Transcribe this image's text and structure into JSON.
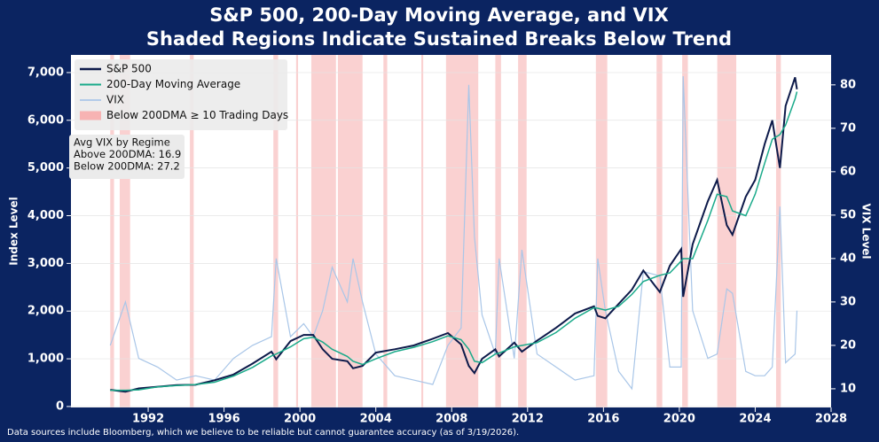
{
  "chart_data": {
    "type": "line",
    "title": "S&P 500, 200-Day Moving Average, and VIX",
    "subtitle": "Shaded Regions Indicate Sustained Breaks Below Trend",
    "ylabel": "Index Level",
    "y2label": "VIX Level",
    "footnote": "Data sources include Bloomberg, which we believe to be reliable but cannot guarantee accuracy (as of 3/19/2026).",
    "annotation": [
      "Avg VIX by Regime",
      "Above 200DMA: 16.9",
      "Below 200DMA: 27.2"
    ],
    "legend": "upper left",
    "grid": true,
    "xlim": [
      1987.93,
      2028
    ],
    "xticks": [
      1992,
      1996,
      2000,
      2004,
      2008,
      2012,
      2016,
      2020,
      2024,
      2028
    ],
    "ylim": [
      -20,
      7370
    ],
    "yticks": [
      0,
      {
        "value": 1000,
        "label": "1,000"
      },
      {
        "value": 2000,
        "label": "2,000"
      },
      {
        "value": 3000,
        "label": "3,000"
      },
      {
        "value": 4000,
        "label": "4,000"
      },
      {
        "value": 5000,
        "label": "5,000"
      },
      {
        "value": 6000,
        "label": "6,000"
      },
      {
        "value": 7000,
        "label": "7,000"
      }
    ],
    "y2lim": [
      5.7,
      86.9
    ],
    "y2ticks": [
      10,
      20,
      30,
      40,
      50,
      60,
      70,
      80
    ],
    "x": [
      1990.0,
      1990.8,
      1991.5,
      1992.5,
      1993.5,
      1994.5,
      1995.5,
      1996.5,
      1997.5,
      1998.5,
      1998.75,
      1999.5,
      2000.2,
      2000.7,
      2001.2,
      2001.7,
      2002.5,
      2002.8,
      2003.3,
      2004.0,
      2005.0,
      2006.0,
      2007.0,
      2007.8,
      2008.5,
      2008.9,
      2009.2,
      2009.6,
      2010.3,
      2010.5,
      2011.3,
      2011.7,
      2012.5,
      2013.5,
      2014.5,
      2015.5,
      2015.7,
      2016.1,
      2016.8,
      2017.5,
      2018.1,
      2018.97,
      2019.5,
      2020.1,
      2020.2,
      2020.7,
      2021.5,
      2021.99,
      2022.5,
      2022.8,
      2023.5,
      2024.0,
      2024.5,
      2024.9,
      2025.3,
      2025.6,
      2026.1,
      2026.2
    ],
    "series": [
      {
        "name": "S&P 500",
        "color": "#0d1a4a",
        "width": 2,
        "values": [
          350,
          310,
          380,
          415,
          450,
          455,
          550,
          670,
          900,
          1150,
          990,
          1370,
          1500,
          1500,
          1200,
          1000,
          950,
          800,
          850,
          1130,
          1200,
          1280,
          1420,
          1540,
          1300,
          850,
          700,
          1000,
          1200,
          1050,
          1340,
          1150,
          1380,
          1650,
          1950,
          2100,
          1900,
          1850,
          2150,
          2450,
          2850,
          2400,
          2950,
          3300,
          2300,
          3400,
          4300,
          4750,
          3800,
          3600,
          4400,
          4750,
          5500,
          6000,
          5000,
          6300,
          6900,
          6650
        ]
      },
      {
        "name": "200-Day Moving Average",
        "color": "#1aaa8a",
        "width": 1.5,
        "values": [
          340,
          340,
          350,
          410,
          440,
          460,
          510,
          640,
          820,
          1060,
          1100,
          1250,
          1420,
          1450,
          1350,
          1200,
          1050,
          950,
          880,
          1000,
          1150,
          1240,
          1360,
          1480,
          1400,
          1200,
          950,
          920,
          1100,
          1120,
          1250,
          1280,
          1340,
          1550,
          1850,
          2070,
          2060,
          2020,
          2100,
          2350,
          2620,
          2750,
          2800,
          3050,
          3100,
          3100,
          3900,
          4450,
          4400,
          4100,
          4000,
          4450,
          5100,
          5600,
          5700,
          5900,
          6450,
          6600
        ]
      },
      {
        "name": "VIX",
        "color": "#a9c6e8",
        "width": 1.2,
        "axis": "y2",
        "values": [
          20,
          30,
          17,
          15,
          12,
          13,
          12,
          17,
          20,
          22,
          40,
          22,
          25,
          22,
          28,
          38,
          30,
          40,
          30,
          18,
          13,
          12,
          11,
          20,
          24,
          80,
          45,
          27,
          18,
          40,
          17,
          42,
          18,
          15,
          12,
          13,
          40,
          28,
          14,
          10,
          37,
          36,
          15,
          15,
          82,
          28,
          17,
          18,
          33,
          32,
          14,
          13,
          13,
          15,
          52,
          16,
          18,
          28
        ]
      }
    ],
    "shading": {
      "name": "Below 200DMA ≥ 10 Trading Days",
      "color": "#f7b3b3",
      "regions": [
        [
          1990.0,
          1990.2
        ],
        [
          1990.5,
          1991.05
        ],
        [
          1994.2,
          1994.4
        ],
        [
          1998.6,
          1998.85
        ],
        [
          1999.8,
          1999.9
        ],
        [
          2000.6,
          2001.9
        ],
        [
          2002.0,
          2003.3
        ],
        [
          2004.4,
          2004.6
        ],
        [
          2006.4,
          2006.5
        ],
        [
          2007.7,
          2009.4
        ],
        [
          2010.3,
          2010.6
        ],
        [
          2011.5,
          2011.95
        ],
        [
          2015.6,
          2016.2
        ],
        [
          2018.8,
          2019.1
        ],
        [
          2020.15,
          2020.45
        ],
        [
          2022.0,
          2023.0
        ],
        [
          2025.1,
          2025.35
        ]
      ]
    }
  }
}
